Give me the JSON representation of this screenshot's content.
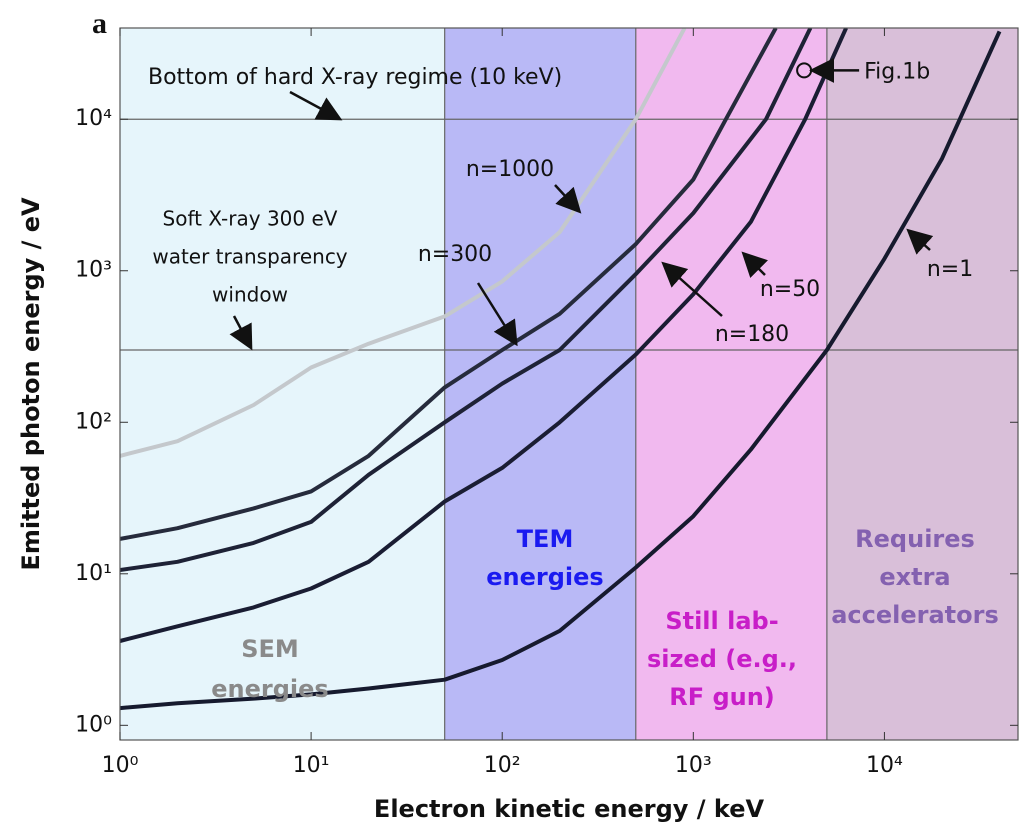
{
  "chart_data": {
    "type": "line",
    "panel_label": "a",
    "x_label": "Electron kinetic energy / keV",
    "y_label": "Emitted photon energy / eV",
    "xlim": [
      1,
      50000
    ],
    "ylim": [
      0.8,
      40000
    ],
    "log_x": true,
    "log_y": true,
    "xticks": [
      {
        "value": 1,
        "label": "10⁰"
      },
      {
        "value": 10,
        "label": "10¹"
      },
      {
        "value": 100,
        "label": "10²"
      },
      {
        "value": 1000,
        "label": "10³"
      },
      {
        "value": 10000,
        "label": "10⁴"
      }
    ],
    "yticks": [
      {
        "value": 1,
        "label": "10⁰"
      },
      {
        "value": 10,
        "label": "10¹"
      },
      {
        "value": 100,
        "label": "10²"
      },
      {
        "value": 1000,
        "label": "10³"
      },
      {
        "value": 10000,
        "label": "10⁴"
      }
    ],
    "regions": [
      {
        "from": 1,
        "to": 50,
        "color": "#e6f5fb",
        "text_color": "#8a8a8a",
        "lines": [
          "SEM",
          "energies"
        ]
      },
      {
        "from": 50,
        "to": 500,
        "color": "#b9b9f6",
        "text_color": "#1a1af0",
        "lines": [
          "TEM",
          "energies"
        ]
      },
      {
        "from": 500,
        "to": 5000,
        "color": "#f1b9ef",
        "text_color": "#c81ec8",
        "lines": [
          "Still lab-",
          "sized (e.g.,",
          "RF gun)"
        ]
      },
      {
        "from": 5000,
        "to": 50000,
        "color": "#d9bfd9",
        "text_color": "#8461b0",
        "lines": [
          "Requires",
          "extra",
          "accelerators"
        ]
      }
    ],
    "hlines": [
      {
        "value": 10000,
        "lines": [
          "Bottom of hard X-ray regime (10 keV)"
        ]
      },
      {
        "value": 300,
        "lines": [
          "Soft X-ray 300 eV",
          "water transparency",
          "window"
        ]
      }
    ],
    "series": [
      {
        "name": "n=1000",
        "color": "#c4c8cc",
        "x": [
          1,
          2,
          5,
          10,
          20,
          50,
          100,
          200,
          500,
          900
        ],
        "values": [
          60,
          75,
          130,
          230,
          330,
          500,
          850,
          1800,
          10000,
          40000
        ]
      },
      {
        "name": "n=300",
        "color": "#262b3c",
        "x": [
          1,
          2,
          5,
          10,
          20,
          50,
          100,
          200,
          500,
          1000,
          1480,
          2700
        ],
        "values": [
          17,
          20,
          27,
          35,
          60,
          170,
          300,
          520,
          1500,
          4000,
          10000,
          40000
        ]
      },
      {
        "name": "n=180",
        "color": "#1e2236",
        "x": [
          1,
          2,
          5,
          10,
          20,
          50,
          100,
          200,
          500,
          1000,
          2400,
          4100
        ],
        "values": [
          10.6,
          12,
          16,
          22,
          45,
          100,
          180,
          300,
          950,
          2400,
          10000,
          40000
        ]
      },
      {
        "name": "n=50",
        "color": "#1a1d33",
        "x": [
          1,
          2,
          5,
          10,
          20,
          50,
          100,
          200,
          500,
          1000,
          2000,
          3850,
          6300
        ],
        "values": [
          3.6,
          4.5,
          6,
          8,
          12,
          30,
          50,
          100,
          280,
          700,
          2100,
          10000,
          40000
        ]
      },
      {
        "name": "n=1",
        "color": "#161a2e",
        "x": [
          1,
          2,
          5,
          10,
          20,
          50,
          100,
          200,
          500,
          1000,
          2000,
          5000,
          10000,
          20000,
          40000
        ],
        "values": [
          1.3,
          1.4,
          1.5,
          1.6,
          1.75,
          2,
          2.7,
          4.2,
          11,
          24,
          66,
          300,
          1200,
          5500,
          38000
        ]
      }
    ],
    "annotation": {
      "text": "Fig.1b",
      "x": 3800,
      "y": 21000
    }
  }
}
